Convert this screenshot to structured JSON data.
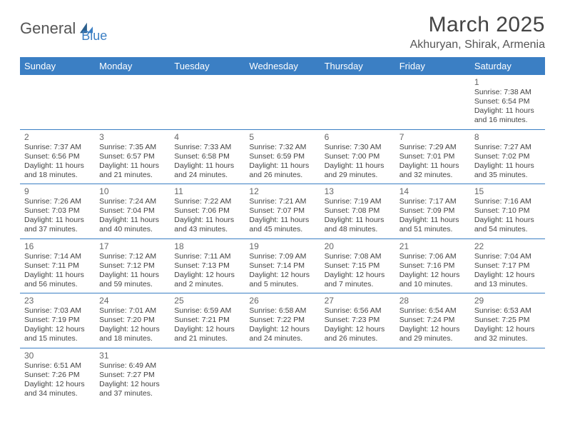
{
  "logo": {
    "part1": "General",
    "part2": "Blue"
  },
  "title": "March 2025",
  "location": "Akhuryan, Shirak, Armenia",
  "colors": {
    "header_bg": "#3b7fc4",
    "header_text": "#ffffff",
    "border": "#3b7fc4",
    "text": "#444444",
    "daynum": "#666666"
  },
  "day_names": [
    "Sunday",
    "Monday",
    "Tuesday",
    "Wednesday",
    "Thursday",
    "Friday",
    "Saturday"
  ],
  "weeks": [
    [
      null,
      null,
      null,
      null,
      null,
      null,
      {
        "n": "1",
        "sr": "7:38 AM",
        "ss": "6:54 PM",
        "dh": "11",
        "dm": "16"
      }
    ],
    [
      {
        "n": "2",
        "sr": "7:37 AM",
        "ss": "6:56 PM",
        "dh": "11",
        "dm": "18"
      },
      {
        "n": "3",
        "sr": "7:35 AM",
        "ss": "6:57 PM",
        "dh": "11",
        "dm": "21"
      },
      {
        "n": "4",
        "sr": "7:33 AM",
        "ss": "6:58 PM",
        "dh": "11",
        "dm": "24"
      },
      {
        "n": "5",
        "sr": "7:32 AM",
        "ss": "6:59 PM",
        "dh": "11",
        "dm": "26"
      },
      {
        "n": "6",
        "sr": "7:30 AM",
        "ss": "7:00 PM",
        "dh": "11",
        "dm": "29"
      },
      {
        "n": "7",
        "sr": "7:29 AM",
        "ss": "7:01 PM",
        "dh": "11",
        "dm": "32"
      },
      {
        "n": "8",
        "sr": "7:27 AM",
        "ss": "7:02 PM",
        "dh": "11",
        "dm": "35"
      }
    ],
    [
      {
        "n": "9",
        "sr": "7:26 AM",
        "ss": "7:03 PM",
        "dh": "11",
        "dm": "37"
      },
      {
        "n": "10",
        "sr": "7:24 AM",
        "ss": "7:04 PM",
        "dh": "11",
        "dm": "40"
      },
      {
        "n": "11",
        "sr": "7:22 AM",
        "ss": "7:06 PM",
        "dh": "11",
        "dm": "43"
      },
      {
        "n": "12",
        "sr": "7:21 AM",
        "ss": "7:07 PM",
        "dh": "11",
        "dm": "45"
      },
      {
        "n": "13",
        "sr": "7:19 AM",
        "ss": "7:08 PM",
        "dh": "11",
        "dm": "48"
      },
      {
        "n": "14",
        "sr": "7:17 AM",
        "ss": "7:09 PM",
        "dh": "11",
        "dm": "51"
      },
      {
        "n": "15",
        "sr": "7:16 AM",
        "ss": "7:10 PM",
        "dh": "11",
        "dm": "54"
      }
    ],
    [
      {
        "n": "16",
        "sr": "7:14 AM",
        "ss": "7:11 PM",
        "dh": "11",
        "dm": "56"
      },
      {
        "n": "17",
        "sr": "7:12 AM",
        "ss": "7:12 PM",
        "dh": "11",
        "dm": "59"
      },
      {
        "n": "18",
        "sr": "7:11 AM",
        "ss": "7:13 PM",
        "dh": "12",
        "dm": "2"
      },
      {
        "n": "19",
        "sr": "7:09 AM",
        "ss": "7:14 PM",
        "dh": "12",
        "dm": "5"
      },
      {
        "n": "20",
        "sr": "7:08 AM",
        "ss": "7:15 PM",
        "dh": "12",
        "dm": "7"
      },
      {
        "n": "21",
        "sr": "7:06 AM",
        "ss": "7:16 PM",
        "dh": "12",
        "dm": "10"
      },
      {
        "n": "22",
        "sr": "7:04 AM",
        "ss": "7:17 PM",
        "dh": "12",
        "dm": "13"
      }
    ],
    [
      {
        "n": "23",
        "sr": "7:03 AM",
        "ss": "7:19 PM",
        "dh": "12",
        "dm": "15"
      },
      {
        "n": "24",
        "sr": "7:01 AM",
        "ss": "7:20 PM",
        "dh": "12",
        "dm": "18"
      },
      {
        "n": "25",
        "sr": "6:59 AM",
        "ss": "7:21 PM",
        "dh": "12",
        "dm": "21"
      },
      {
        "n": "26",
        "sr": "6:58 AM",
        "ss": "7:22 PM",
        "dh": "12",
        "dm": "24"
      },
      {
        "n": "27",
        "sr": "6:56 AM",
        "ss": "7:23 PM",
        "dh": "12",
        "dm": "26"
      },
      {
        "n": "28",
        "sr": "6:54 AM",
        "ss": "7:24 PM",
        "dh": "12",
        "dm": "29"
      },
      {
        "n": "29",
        "sr": "6:53 AM",
        "ss": "7:25 PM",
        "dh": "12",
        "dm": "32"
      }
    ],
    [
      {
        "n": "30",
        "sr": "6:51 AM",
        "ss": "7:26 PM",
        "dh": "12",
        "dm": "34"
      },
      {
        "n": "31",
        "sr": "6:49 AM",
        "ss": "7:27 PM",
        "dh": "12",
        "dm": "37"
      },
      null,
      null,
      null,
      null,
      null
    ]
  ]
}
